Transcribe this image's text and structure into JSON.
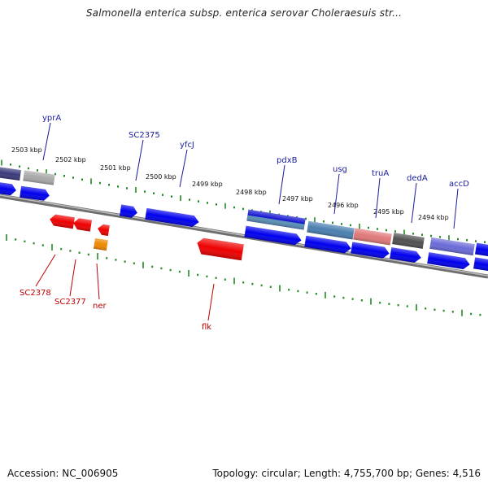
{
  "title": "Salmonella enterica subsp. enterica serovar Choleraesuis str...",
  "footer": {
    "accession": "Accession: NC_006905",
    "info": "Topology: circular; Length: 4,755,700 bp; Genes: 4,516"
  },
  "colors": {
    "forward_gene": "#0000ee",
    "reverse_gene": "#ee0000",
    "tick": "#228b22",
    "backbone": "#808080",
    "forward_label": "#1a1aa0",
    "reverse_label": "#c00000"
  },
  "kbp_labels": [
    "2503 kbp",
    "2502 kbp",
    "2501 kbp",
    "2500 kbp",
    "2499 kbp",
    "2498 kbp",
    "2497 kbp",
    "2496 kbp",
    "2495 kbp",
    "2494 kbp"
  ],
  "gene_labels": {
    "forward": [
      "yprA",
      "SC2375",
      "yfcJ",
      "pdxB",
      "usg",
      "truA",
      "dedA",
      "accD"
    ],
    "reverse": [
      "SC2378",
      "SC2377",
      "ner",
      "flk"
    ]
  }
}
